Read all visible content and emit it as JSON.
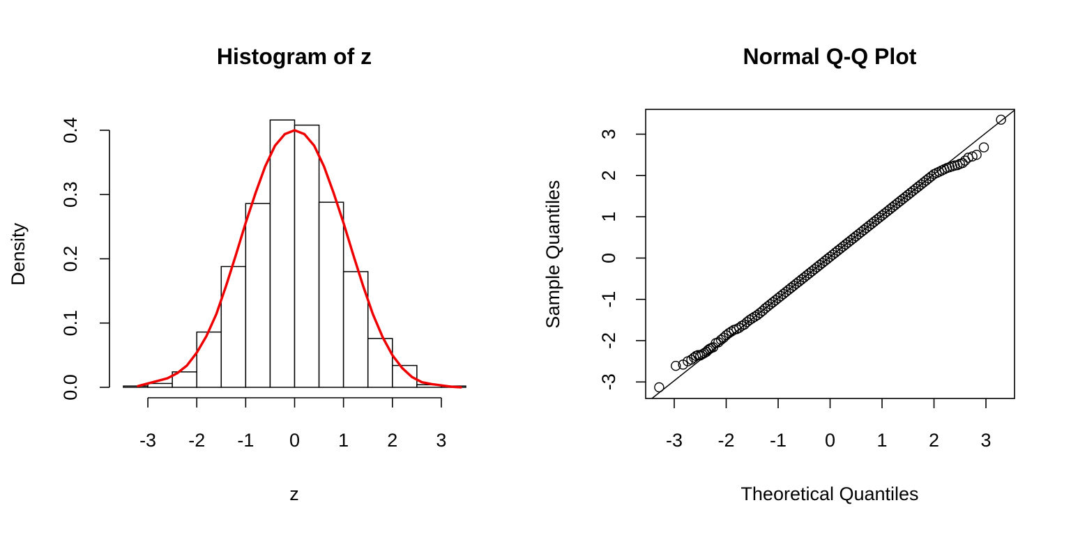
{
  "chart_data": [
    {
      "type": "bar",
      "title": "Histogram of z",
      "xlabel": "z",
      "ylabel": "Density",
      "xlim": [
        -3.5,
        3.5
      ],
      "ylim": [
        0,
        0.4
      ],
      "x_ticks": [
        -3,
        -2,
        -1,
        0,
        1,
        2,
        3
      ],
      "x_tick_labels": [
        "-3",
        "-2",
        "-1",
        "0",
        "1",
        "2",
        "3"
      ],
      "y_ticks": [
        0,
        0.1,
        0.2,
        0.3,
        0.4
      ],
      "y_tick_labels": [
        "0.0",
        "0.1",
        "0.2",
        "0.3",
        "0.4"
      ],
      "grid": false,
      "bins": [
        {
          "left": -3.5,
          "right": -3.0,
          "density": 0.002
        },
        {
          "left": -3.0,
          "right": -2.5,
          "density": 0.006
        },
        {
          "left": -2.5,
          "right": -2.0,
          "density": 0.024
        },
        {
          "left": -2.0,
          "right": -1.5,
          "density": 0.086
        },
        {
          "left": -1.5,
          "right": -1.0,
          "density": 0.188
        },
        {
          "left": -1.0,
          "right": -0.5,
          "density": 0.286
        },
        {
          "left": -0.5,
          "right": 0.0,
          "density": 0.416
        },
        {
          "left": 0.0,
          "right": 0.5,
          "density": 0.408
        },
        {
          "left": 0.5,
          "right": 1.0,
          "density": 0.288
        },
        {
          "left": 1.0,
          "right": 1.5,
          "density": 0.18
        },
        {
          "left": 1.5,
          "right": 2.0,
          "density": 0.076
        },
        {
          "left": 2.0,
          "right": 2.5,
          "density": 0.034
        },
        {
          "left": 2.5,
          "right": 3.0,
          "density": 0.004
        },
        {
          "left": 3.0,
          "right": 3.5,
          "density": 0.002
        }
      ],
      "curve": {
        "color": "#ee0000",
        "x": [
          -3.2,
          -3.0,
          -2.8,
          -2.6,
          -2.4,
          -2.2,
          -2.0,
          -1.8,
          -1.6,
          -1.4,
          -1.2,
          -1.0,
          -0.8,
          -0.6,
          -0.4,
          -0.2,
          0.0,
          0.2,
          0.4,
          0.6,
          0.8,
          1.0,
          1.2,
          1.4,
          1.6,
          1.8,
          2.0,
          2.2,
          2.4,
          2.6,
          2.8,
          3.0,
          3.2,
          3.4
        ],
        "y": [
          0.002,
          0.006,
          0.01,
          0.014,
          0.022,
          0.034,
          0.054,
          0.08,
          0.114,
          0.158,
          0.206,
          0.256,
          0.302,
          0.344,
          0.376,
          0.394,
          0.4,
          0.394,
          0.376,
          0.344,
          0.302,
          0.256,
          0.206,
          0.158,
          0.114,
          0.078,
          0.05,
          0.03,
          0.016,
          0.008,
          0.005,
          0.003,
          0.001,
          0.0
        ]
      }
    },
    {
      "type": "scatter",
      "title": "Normal Q-Q Plot",
      "xlabel": "Theoretical Quantiles",
      "ylabel": "Sample Quantiles",
      "xlim": [
        -3.55,
        3.55
      ],
      "ylim": [
        -3.4,
        3.6
      ],
      "x_ticks": [
        -3,
        -2,
        -1,
        0,
        1,
        2,
        3
      ],
      "x_tick_labels": [
        "-3",
        "-2",
        "-1",
        "0",
        "1",
        "2",
        "3"
      ],
      "y_ticks": [
        -3,
        -2,
        -1,
        0,
        1,
        2,
        3
      ],
      "y_tick_labels": [
        "-3",
        "-2",
        "-1",
        "0",
        "1",
        "2",
        "3"
      ],
      "grid": false,
      "reference_line": {
        "intercept": 0.03,
        "slope": 1.0
      },
      "points": {
        "x": [
          -3.29,
          -2.97,
          -2.83,
          -2.74,
          -2.67,
          -2.62,
          -2.58,
          -2.54,
          -2.5,
          -2.46,
          -2.42,
          -2.38,
          -2.35,
          -2.32,
          -2.29,
          -2.25,
          -2.2,
          -2.15,
          -2.1,
          -2.05,
          -2.0,
          -1.95,
          -1.9,
          -1.85,
          -1.8,
          -1.75,
          -1.7,
          -1.65,
          -1.6,
          -1.55,
          -1.5,
          -1.45,
          -1.4,
          -1.35,
          -1.3,
          -1.25,
          -1.2,
          -1.15,
          -1.1,
          -1.05,
          -1.0,
          -0.95,
          -0.9,
          -0.85,
          -0.8,
          -0.75,
          -0.7,
          -0.65,
          -0.6,
          -0.55,
          -0.5,
          -0.45,
          -0.4,
          -0.35,
          -0.3,
          -0.25,
          -0.2,
          -0.15,
          -0.1,
          -0.05,
          0.0,
          0.05,
          0.1,
          0.15,
          0.2,
          0.25,
          0.3,
          0.35,
          0.4,
          0.45,
          0.5,
          0.55,
          0.6,
          0.65,
          0.7,
          0.75,
          0.8,
          0.85,
          0.9,
          0.95,
          1.0,
          1.05,
          1.1,
          1.15,
          1.2,
          1.25,
          1.3,
          1.35,
          1.4,
          1.45,
          1.5,
          1.55,
          1.6,
          1.65,
          1.7,
          1.75,
          1.8,
          1.85,
          1.9,
          1.95,
          2.0,
          2.05,
          2.1,
          2.15,
          2.2,
          2.25,
          2.3,
          2.35,
          2.4,
          2.45,
          2.5,
          2.55,
          2.6,
          2.66,
          2.74,
          2.82,
          2.96,
          3.29
        ],
        "y": [
          -3.13,
          -2.61,
          -2.58,
          -2.5,
          -2.46,
          -2.41,
          -2.37,
          -2.35,
          -2.36,
          -2.33,
          -2.3,
          -2.27,
          -2.23,
          -2.2,
          -2.18,
          -2.16,
          -2.06,
          -2.04,
          -1.98,
          -1.93,
          -1.87,
          -1.82,
          -1.78,
          -1.74,
          -1.72,
          -1.69,
          -1.64,
          -1.61,
          -1.55,
          -1.5,
          -1.46,
          -1.42,
          -1.38,
          -1.33,
          -1.28,
          -1.22,
          -1.17,
          -1.12,
          -1.07,
          -1.02,
          -0.97,
          -0.92,
          -0.87,
          -0.82,
          -0.77,
          -0.72,
          -0.67,
          -0.62,
          -0.57,
          -0.52,
          -0.47,
          -0.42,
          -0.37,
          -0.32,
          -0.27,
          -0.22,
          -0.17,
          -0.12,
          -0.07,
          -0.02,
          0.03,
          0.08,
          0.13,
          0.18,
          0.23,
          0.28,
          0.33,
          0.38,
          0.43,
          0.48,
          0.53,
          0.58,
          0.63,
          0.68,
          0.73,
          0.78,
          0.83,
          0.88,
          0.93,
          0.98,
          1.03,
          1.08,
          1.13,
          1.18,
          1.23,
          1.28,
          1.33,
          1.38,
          1.43,
          1.48,
          1.53,
          1.58,
          1.63,
          1.68,
          1.73,
          1.78,
          1.83,
          1.88,
          1.93,
          1.98,
          2.03,
          2.06,
          2.09,
          2.12,
          2.15,
          2.18,
          2.2,
          2.22,
          2.24,
          2.25,
          2.28,
          2.3,
          2.36,
          2.43,
          2.46,
          2.5,
          2.68,
          3.35
        ]
      }
    }
  ]
}
